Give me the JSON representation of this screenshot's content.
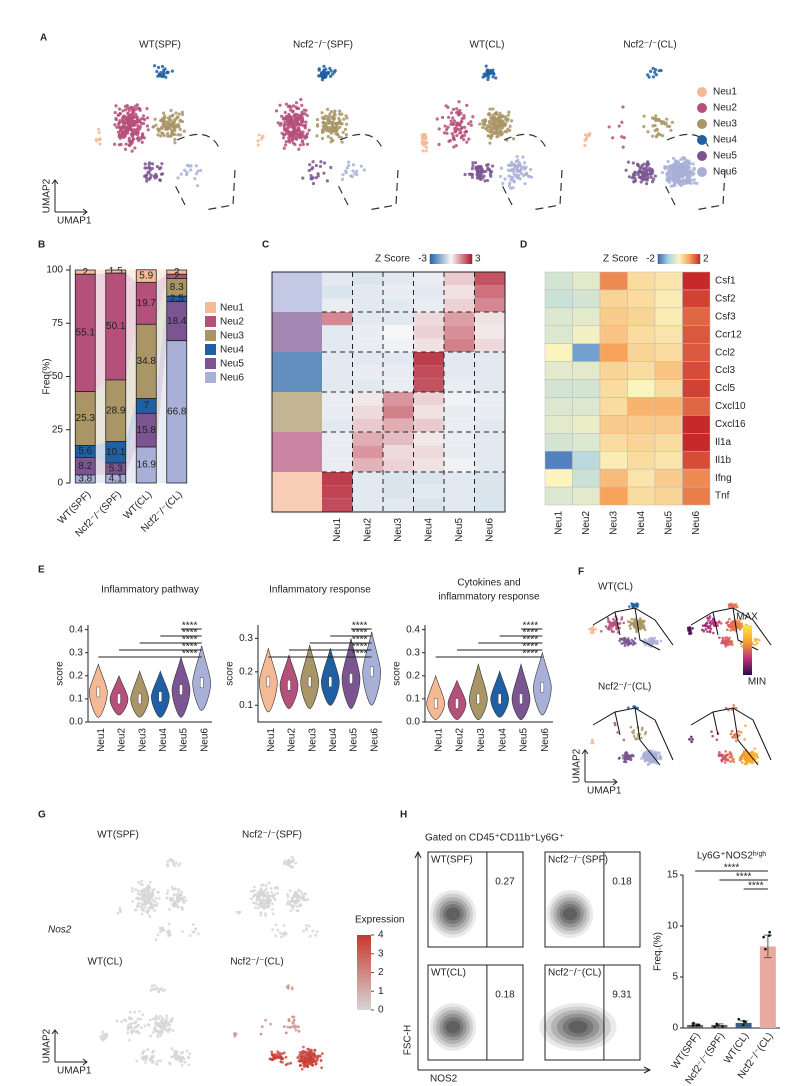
{
  "panel_labels": [
    "A",
    "B",
    "C",
    "D",
    "E",
    "F",
    "G",
    "H"
  ],
  "umap": {
    "conditions": [
      "WT(SPF)",
      "Ncf2⁻/⁻(SPF)",
      "WT(CL)",
      "Ncf2⁻/⁻(CL)"
    ],
    "legend": [
      {
        "name": "Neu1",
        "color": "#f4b995"
      },
      {
        "name": "Neu2",
        "color": "#b5507a"
      },
      {
        "name": "Neu3",
        "color": "#a99565"
      },
      {
        "name": "Neu4",
        "color": "#1f5fa3"
      },
      {
        "name": "Neu5",
        "color": "#7a5591"
      },
      {
        "name": "Neu6",
        "color": "#a9b0d8"
      }
    ],
    "xlabel": "UMAP1",
    "ylabel": "UMAP2"
  },
  "trajectory": {
    "conditions": [
      "WT(CL)",
      "Ncf2⁻/⁻(CL)"
    ],
    "legend_labels": [
      "MAX",
      "MIN"
    ],
    "colors": [
      "#2a0a4a",
      "#c2307a",
      "#f6a32a",
      "#fde74c"
    ],
    "xlabel": "UMAP1",
    "ylabel": "UMAP2"
  },
  "expression": {
    "gene": "Nos2",
    "conditions": [
      "WT(SPF)",
      "Ncf2⁻/⁻(SPF)",
      "WT(CL)",
      "Ncf2⁻/⁻(CL)"
    ],
    "legend_title": "Expression",
    "ticks": [
      4,
      3,
      2,
      1,
      0
    ],
    "clim": [
      0,
      4
    ],
    "colors": [
      "#d6d6d6",
      "#c8372d"
    ],
    "xlabel": "UMAP1",
    "ylabel": "UMAP2"
  },
  "flow": {
    "header": "Gated on CD45⁺CD11b⁺Ly6G⁺",
    "ylabel": "FSC-H",
    "xlabel": "NOS2",
    "plots": [
      {
        "label": "WT(SPF)",
        "value": 0.27
      },
      {
        "label": "Ncf2⁻/⁻(SPF)",
        "value": 0.18
      },
      {
        "label": "WT(CL)",
        "value": 0.18
      },
      {
        "label": "Ncf2⁻/⁻(CL)",
        "value": 9.31
      }
    ]
  },
  "chart_data": [
    {
      "type": "stacked_bar",
      "ylabel": "Freq(%)",
      "categories": [
        "WT(SPF)",
        "Ncf2⁻/⁻(SPF)",
        "WT(CL)",
        "Ncf2⁻/⁻(CL)"
      ],
      "series": [
        {
          "name": "Neu1",
          "color": "#f4b995",
          "values": [
            2,
            1.5,
            5.9,
            2
          ]
        },
        {
          "name": "Neu2",
          "color": "#b5507a",
          "values": [
            55.1,
            50.1,
            19.7,
            2
          ]
        },
        {
          "name": "Neu3",
          "color": "#a99565",
          "values": [
            25.3,
            28.9,
            34.8,
            8.3
          ]
        },
        {
          "name": "Neu4",
          "color": "#1f5fa3",
          "values": [
            5.6,
            10.1,
            7,
            2.5
          ]
        },
        {
          "name": "Neu5",
          "color": "#7a5591",
          "values": [
            8.2,
            5.3,
            15.8,
            18.4
          ]
        },
        {
          "name": "Neu6",
          "color": "#a9b0d8",
          "values": [
            3.8,
            4.1,
            16.9,
            66.8
          ]
        }
      ],
      "ylim": [
        0,
        100
      ],
      "yticks": [
        0,
        25,
        50,
        75,
        100
      ]
    },
    {
      "type": "heatmap",
      "colorbar_label": "Z Score",
      "zlim": [
        -3,
        3
      ],
      "zticks": [
        -3,
        3
      ],
      "colors": [
        "#2166ac",
        "#f7f7f7",
        "#b2182b"
      ],
      "group_colors": [
        "#a9b0d8",
        "#7a5591",
        "#1f5fa3",
        "#a99565",
        "#b5507a",
        "#f4b995"
      ],
      "columns": [
        "Neu1",
        "Neu2",
        "Neu3",
        "Neu4",
        "Neu5",
        "Neu6"
      ],
      "values": [
        [
          -0.3,
          -0.4,
          -0.3,
          -0.2,
          0.6,
          2.2
        ],
        [
          -0.4,
          -0.3,
          -0.2,
          -0.3,
          0.3,
          1.8
        ],
        [
          -0.2,
          -0.3,
          -0.3,
          -0.2,
          0.5,
          1.5
        ],
        [
          1.5,
          -0.3,
          -0.3,
          0.4,
          1.2,
          0.3
        ],
        [
          -0.3,
          -0.2,
          0,
          0.5,
          1.4,
          0.2
        ],
        [
          -0.3,
          -0.2,
          -0.1,
          0.3,
          1.6,
          0.4
        ],
        [
          -0.3,
          -0.3,
          -0.3,
          2.5,
          -0.3,
          -0.3
        ],
        [
          -0.3,
          -0.2,
          -0.2,
          2.3,
          -0.3,
          -0.3
        ],
        [
          -0.3,
          -0.3,
          -0.2,
          2.2,
          -0.2,
          -0.3
        ],
        [
          -0.2,
          0.2,
          1.3,
          0.5,
          -0.1,
          -0.2
        ],
        [
          -0.2,
          0.4,
          1.6,
          0.3,
          -0.2,
          -0.2
        ],
        [
          -0.3,
          0.6,
          1,
          0.6,
          -0.2,
          -0.3
        ],
        [
          -0.2,
          1,
          0.8,
          0.2,
          -0.2,
          -0.3
        ],
        [
          -0.2,
          1.3,
          0.4,
          0.4,
          -0.2,
          -0.3
        ],
        [
          -0.2,
          0.9,
          0.5,
          0.3,
          -0.1,
          -0.3
        ],
        [
          2.5,
          -0.3,
          -0.4,
          -0.4,
          -0.3,
          -0.4
        ],
        [
          2.4,
          -0.3,
          -0.4,
          -0.3,
          -0.3,
          -0.4
        ],
        [
          2.3,
          -0.3,
          -0.3,
          -0.4,
          -0.3,
          -0.4
        ]
      ]
    },
    {
      "type": "heatmap",
      "colorbar_label": "Z Score",
      "zlim": [
        -2,
        2
      ],
      "zticks": [
        -2,
        2
      ],
      "colors": [
        "#3d6db5",
        "#abd3e6",
        "#fbf4bf",
        "#f7a35b",
        "#c7282a"
      ],
      "columns": [
        "Neu1",
        "Neu2",
        "Neu3",
        "Neu4",
        "Neu5",
        "Neu6"
      ],
      "rows": [
        "Csf1",
        "Csf2",
        "Csf3",
        "Ccr12",
        "Ccl2",
        "Ccl3",
        "Ccl5",
        "Cxcl10",
        "Cxcl16",
        "Il1a",
        "Il1b",
        "Ifng",
        "Tnf"
      ],
      "values": [
        [
          -0.5,
          -0.3,
          1.2,
          0.3,
          0.2,
          2
        ],
        [
          -0.6,
          -0.5,
          0.4,
          0.3,
          0.1,
          1.8
        ],
        [
          -0.4,
          -0.3,
          0.5,
          0.4,
          0.1,
          1.5
        ],
        [
          -0.4,
          -0.1,
          0.6,
          0.3,
          0.2,
          1.6
        ],
        [
          0,
          -1.5,
          1,
          0.4,
          0.3,
          1.6
        ],
        [
          -0.3,
          -0.3,
          0.4,
          0.3,
          0.6,
          1.7
        ],
        [
          -0.5,
          -0.5,
          0.3,
          0,
          0.3,
          1.8
        ],
        [
          -0.4,
          -0.4,
          0.3,
          0.8,
          0.8,
          1.5
        ],
        [
          -0.3,
          -0.2,
          0.5,
          0.5,
          0.5,
          2
        ],
        [
          -0.5,
          -0.4,
          0.3,
          0.4,
          0.3,
          2
        ],
        [
          -1.8,
          -0.8,
          0.1,
          0.3,
          0.2,
          1.7
        ],
        [
          0,
          -0.6,
          0.7,
          0.2,
          0.5,
          1.2
        ],
        [
          -0.4,
          -0.3,
          1,
          0.3,
          0.4,
          1.3
        ]
      ]
    },
    {
      "type": "violin",
      "title": [
        "Inflammatory pathway"
      ],
      "ylabel": "score",
      "categories": [
        "Neu1",
        "Neu2",
        "Neu3",
        "Neu4",
        "Neu5",
        "Neu6"
      ],
      "values": [
        0.13,
        0.1,
        0.1,
        0.11,
        0.14,
        0.17
      ],
      "min": [
        0.02,
        0.03,
        0.02,
        0.02,
        0.02,
        0.05
      ],
      "max": [
        0.25,
        0.2,
        0.22,
        0.22,
        0.28,
        0.33
      ],
      "ylim": [
        0,
        0.42
      ],
      "yticks": [
        {
          "value": 0,
          "label": "0.0"
        },
        0.1,
        0.2,
        0.3,
        0.4
      ],
      "significance": [
        "****",
        "****",
        "****",
        "****",
        "****"
      ]
    },
    {
      "type": "violin",
      "title": [
        "Inflammatory response"
      ],
      "ylabel": "score",
      "categories": [
        "Neu1",
        "Neu2",
        "Neu3",
        "Neu4",
        "Neu5",
        "Neu6"
      ],
      "values": [
        0.17,
        0.16,
        0.17,
        0.17,
        0.18,
        0.2
      ],
      "min": [
        0.08,
        0.09,
        0.09,
        0.1,
        0.09,
        0.1
      ],
      "max": [
        0.27,
        0.25,
        0.28,
        0.27,
        0.3,
        0.32
      ],
      "ylim": [
        0.05,
        0.34
      ],
      "yticks": [
        0.1,
        0.2,
        0.3
      ],
      "significance": [
        "****",
        "****",
        "****",
        "****",
        "****"
      ]
    },
    {
      "type": "violin",
      "title": [
        "Cytokines and",
        "inflammatory response"
      ],
      "ylabel": "score",
      "categories": [
        "Neu1",
        "Neu2",
        "Neu3",
        "Neu4",
        "Neu5",
        "Neu6"
      ],
      "values": [
        0.08,
        0.08,
        0.1,
        0.1,
        0.1,
        0.15
      ],
      "min": [
        0.01,
        0.01,
        0.01,
        0.02,
        0.01,
        0.03
      ],
      "max": [
        0.2,
        0.18,
        0.25,
        0.22,
        0.25,
        0.3
      ],
      "ylim": [
        0,
        0.42
      ],
      "yticks": [
        {
          "value": 0,
          "label": "0.0"
        },
        0.1,
        0.2,
        0.3,
        0.4
      ],
      "significance": [
        "****",
        "****",
        "****",
        "****",
        "****"
      ]
    },
    {
      "type": "bar",
      "title": "Ly6G⁺NOS2ʰⁱᵍʰ",
      "ylabel": "Freq.(%)",
      "categories": [
        "WT(SPF)",
        "Ncf2⁻/⁻(SPF)",
        "WT(CL)",
        "Ncf2⁻/⁻(CL)"
      ],
      "values": [
        0.3,
        0.3,
        0.5,
        8
      ],
      "errors": [
        0.1,
        0.1,
        0.2,
        1.1
      ],
      "colors": [
        "#666666",
        "#666666",
        "#3b5b8c",
        "#eaa9a0"
      ],
      "ylim": [
        0,
        15
      ],
      "yticks": [
        0,
        5,
        10,
        15
      ],
      "significance": [
        "****",
        "****",
        "****"
      ]
    }
  ]
}
